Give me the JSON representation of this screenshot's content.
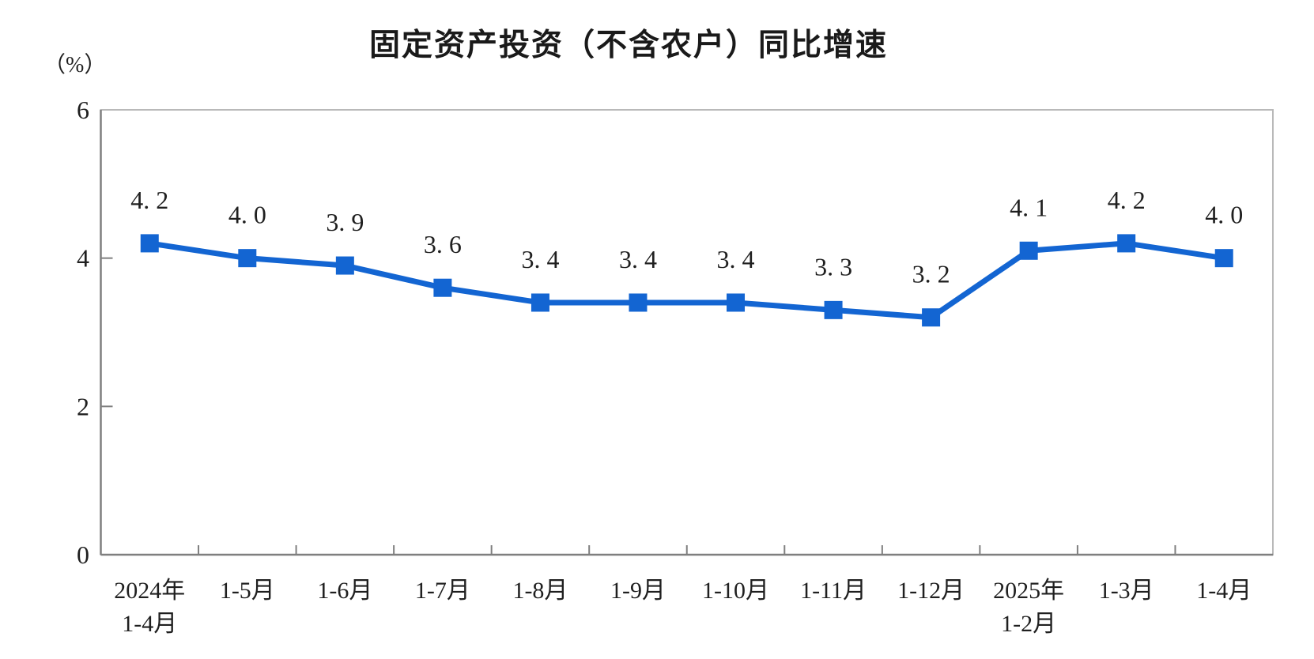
{
  "chart_data": {
    "type": "line",
    "title": "固定资产投资（不含农户）同比增速",
    "xlabel": "",
    "ylabel": "（%）",
    "ylim": [
      0,
      6
    ],
    "yticks": [
      0,
      2,
      4,
      6
    ],
    "grid": false,
    "legend": "none",
    "marker": "square",
    "categories": [
      "2024年\n1-4月",
      "1-5月",
      "1-6月",
      "1-7月",
      "1-8月",
      "1-9月",
      "1-10月",
      "1-11月",
      "1-12月",
      "2025年\n1-2月",
      "1-3月",
      "1-4月"
    ],
    "values": [
      4.2,
      4.0,
      3.9,
      3.6,
      3.4,
      3.4,
      3.4,
      3.3,
      3.2,
      4.1,
      4.2,
      4.0
    ],
    "point_labels": [
      "4. 2",
      "4. 0",
      "3. 9",
      "3. 6",
      "3. 4",
      "3. 4",
      "3. 4",
      "3. 3",
      "3. 2",
      "4. 1",
      "4. 2",
      "4. 0"
    ],
    "colors": {
      "series": "#1365d2",
      "axis": "#7f7f7f",
      "plot_border": "#b9b9b9",
      "point_label": "#1f1f1f",
      "tick_label": "#1f1f1f",
      "title": "#1a1a1a"
    }
  }
}
